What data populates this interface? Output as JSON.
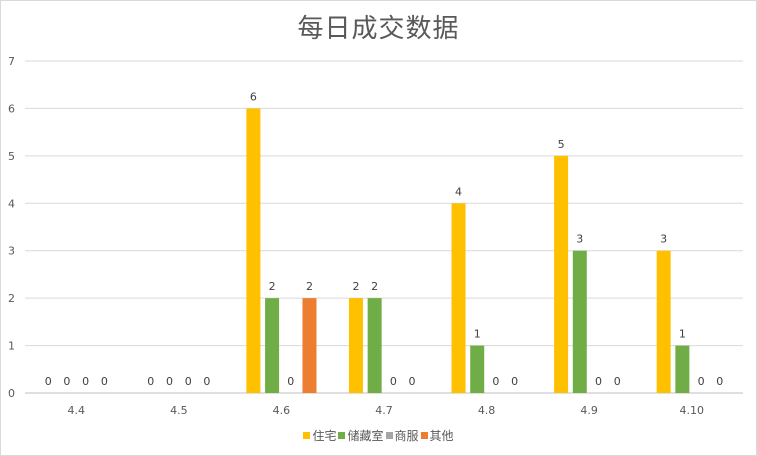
{
  "chart_data": {
    "type": "bar",
    "title": "每日成交数据",
    "categories": [
      "4.4",
      "4.5",
      "4.6",
      "4.7",
      "4.8",
      "4.9",
      "4.10"
    ],
    "series": [
      {
        "name": "住宅",
        "color": "#FFC000",
        "values": [
          0,
          0,
          6,
          2,
          4,
          5,
          3
        ]
      },
      {
        "name": "储藏室",
        "color": "#70AD47",
        "values": [
          0,
          0,
          2,
          2,
          1,
          3,
          1
        ]
      },
      {
        "name": "商服",
        "color": "#A5A5A5",
        "values": [
          0,
          0,
          0,
          0,
          0,
          0,
          0
        ]
      },
      {
        "name": "其他",
        "color": "#ED7D31",
        "values": [
          0,
          0,
          2,
          0,
          0,
          0,
          0
        ]
      }
    ],
    "ylim": [
      0,
      7
    ],
    "yticks": [
      0,
      1,
      2,
      3,
      4,
      5,
      6,
      7
    ],
    "grid": true,
    "legend_position": "bottom"
  }
}
